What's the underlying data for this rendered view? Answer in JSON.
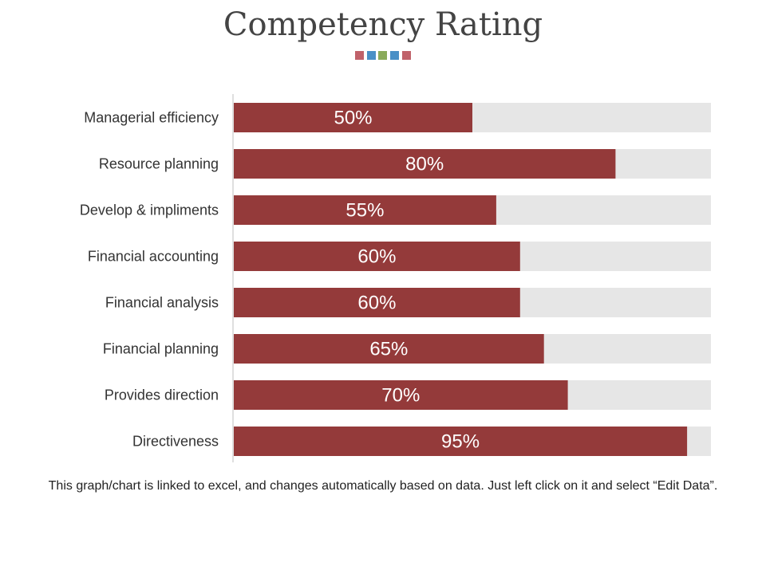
{
  "title": "Competency Rating",
  "caption": "This graph/chart is linked to excel, and changes automatically based on data. Just left click on it and select “Edit Data”.",
  "decor_colors": [
    "#c0626a",
    "#4a90c6",
    "#8aaa5a",
    "#4a90c6",
    "#c0626a"
  ],
  "colors": {
    "bar": "#943a3a",
    "track": "#e6e6e6",
    "axis": "#bfbfbf",
    "label": "#333333",
    "value_text": "#ffffff"
  },
  "chart_data": {
    "type": "bar",
    "orientation": "horizontal",
    "title": "Competency Rating",
    "categories": [
      "Managerial efficiency",
      "Resource planning",
      "Develop & impliments",
      "Financial accounting",
      "Financial analysis",
      "Financial planning",
      "Provides direction",
      "Directiveness"
    ],
    "values": [
      50,
      80,
      55,
      60,
      60,
      65,
      70,
      95
    ],
    "value_labels": [
      "50%",
      "80%",
      "55%",
      "60%",
      "60%",
      "65%",
      "70%",
      "95%"
    ],
    "xlim": [
      0,
      100
    ],
    "unit": "%",
    "grid": false,
    "legend": "none"
  }
}
